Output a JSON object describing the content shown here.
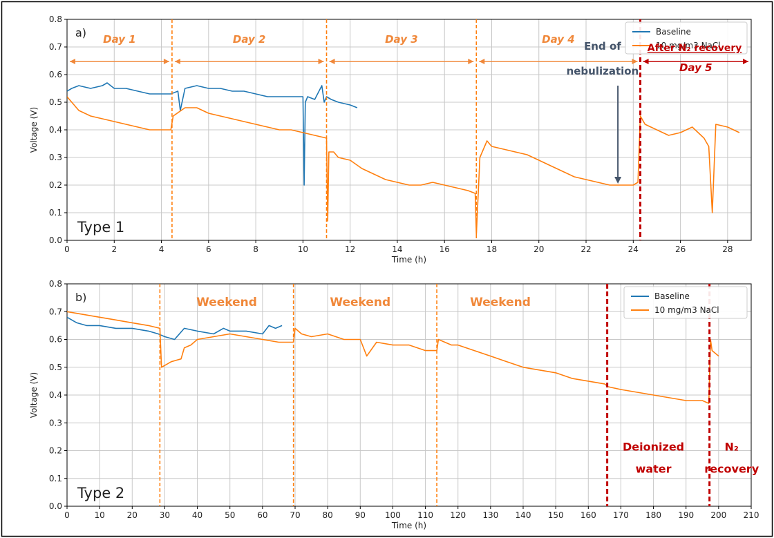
{
  "chart_data": [
    {
      "type": "line",
      "panel_label": "a)",
      "type_label": "Type 1",
      "xlabel": "Time (h)",
      "ylabel": "Voltage (V)",
      "xlim": [
        0,
        29
      ],
      "ylim": [
        0,
        0.8
      ],
      "xticks": [
        0,
        2,
        4,
        6,
        8,
        10,
        12,
        14,
        16,
        18,
        20,
        22,
        24,
        26,
        28
      ],
      "yticks": [
        0.0,
        0.1,
        0.2,
        0.3,
        0.4,
        0.5,
        0.6,
        0.7,
        0.8
      ],
      "grid": true,
      "legend_position": "top-right",
      "series": [
        {
          "name": "Baseline",
          "color": "#1f77b4",
          "x": [
            0,
            0.2,
            0.5,
            1,
            1.5,
            1.7,
            2,
            2.5,
            3,
            3.5,
            4,
            4.4,
            4.7,
            4.8,
            5,
            5.5,
            6,
            6.5,
            7,
            7.5,
            8,
            8.5,
            9,
            9.5,
            10,
            10.05,
            10.1,
            10.2,
            10.5,
            10.8,
            10.9,
            11,
            11.2,
            11.5,
            12,
            12.3
          ],
          "y": [
            0.54,
            0.55,
            0.56,
            0.55,
            0.56,
            0.57,
            0.55,
            0.55,
            0.54,
            0.53,
            0.53,
            0.53,
            0.54,
            0.47,
            0.55,
            0.56,
            0.55,
            0.55,
            0.54,
            0.54,
            0.53,
            0.52,
            0.52,
            0.52,
            0.52,
            0.2,
            0.5,
            0.52,
            0.51,
            0.56,
            0.5,
            0.52,
            0.51,
            0.5,
            0.49,
            0.48
          ]
        },
        {
          "name": "10 mg/m3 NaCl",
          "color": "#ff7f0e",
          "x": [
            0,
            0.5,
            1,
            1.5,
            2,
            2.5,
            3,
            3.5,
            4,
            4.4,
            4.5,
            5,
            5.5,
            6,
            6.5,
            7,
            7.5,
            8,
            8.5,
            9,
            9.5,
            10,
            10.5,
            11,
            11.05,
            11.1,
            11.3,
            11.5,
            12,
            12.5,
            13,
            13.5,
            14,
            14.5,
            15,
            15.5,
            16,
            16.5,
            17,
            17.3,
            17.35,
            17.5,
            17.8,
            18,
            18.5,
            19,
            19.5,
            20,
            20.5,
            21,
            21.5,
            22,
            22.5,
            23,
            23.5,
            24,
            24.2,
            24.3,
            24.5,
            25,
            25.5,
            26,
            26.5,
            27,
            27.2,
            27.35,
            27.5,
            28,
            28.5
          ],
          "y": [
            0.52,
            0.47,
            0.45,
            0.44,
            0.43,
            0.42,
            0.41,
            0.4,
            0.4,
            0.4,
            0.45,
            0.48,
            0.48,
            0.46,
            0.45,
            0.44,
            0.43,
            0.42,
            0.41,
            0.4,
            0.4,
            0.39,
            0.38,
            0.37,
            0.07,
            0.32,
            0.32,
            0.3,
            0.29,
            0.26,
            0.24,
            0.22,
            0.21,
            0.2,
            0.2,
            0.21,
            0.2,
            0.19,
            0.18,
            0.17,
            0.02,
            0.3,
            0.36,
            0.34,
            0.33,
            0.32,
            0.31,
            0.29,
            0.27,
            0.25,
            0.23,
            0.22,
            0.21,
            0.2,
            0.2,
            0.2,
            0.21,
            0.45,
            0.42,
            0.4,
            0.38,
            0.39,
            0.41,
            0.37,
            0.34,
            0.1,
            0.42,
            0.41,
            0.39
          ]
        }
      ],
      "vlines": [
        {
          "x": 4.45,
          "style": "dashed",
          "color": "#ff7f0e"
        },
        {
          "x": 11.0,
          "style": "dashed",
          "color": "#ff7f0e"
        },
        {
          "x": 17.35,
          "style": "dashed",
          "color": "#ff7f0e"
        },
        {
          "x": 24.3,
          "style": "dashed-thick",
          "color": "#c00000"
        }
      ],
      "annotations": [
        {
          "text": "Day 1",
          "color": "#f0883a",
          "from": 0,
          "to": 4.45
        },
        {
          "text": "Day 2",
          "color": "#f0883a",
          "from": 4.45,
          "to": 11.0
        },
        {
          "text": "Day 3",
          "color": "#f0883a",
          "from": 11.0,
          "to": 17.35
        },
        {
          "text": "Day 4",
          "color": "#f0883a",
          "from": 17.35,
          "to": 24.3
        },
        {
          "text": "Day 5",
          "color": "#c00000",
          "from": 24.3,
          "to": 29
        },
        {
          "text": "After N₂ recovery",
          "color": "#c00000",
          "x": 26.6,
          "y": 0.685
        },
        {
          "text": "End of",
          "color": "#44546a",
          "x": 22.7,
          "y": 0.69
        },
        {
          "text": "nebulization",
          "color": "#44546a",
          "x": 22.7,
          "y": 0.6
        }
      ]
    },
    {
      "type": "line",
      "panel_label": "b)",
      "type_label": "Type 2",
      "xlabel": "Time (h)",
      "ylabel": "Voltage (V)",
      "xlim": [
        0,
        210
      ],
      "ylim": [
        0,
        0.8
      ],
      "xticks": [
        0,
        10,
        20,
        30,
        40,
        50,
        60,
        70,
        80,
        90,
        100,
        110,
        120,
        130,
        140,
        150,
        160,
        170,
        180,
        190,
        200,
        210
      ],
      "yticks": [
        0.0,
        0.1,
        0.2,
        0.3,
        0.4,
        0.5,
        0.6,
        0.7,
        0.8
      ],
      "grid": true,
      "legend_position": "top-right",
      "series": [
        {
          "name": "Baseline",
          "color": "#1f77b4",
          "x": [
            0,
            3,
            6,
            10,
            15,
            20,
            25,
            28,
            30,
            33,
            36,
            40,
            45,
            48,
            50,
            55,
            60,
            62,
            64,
            66
          ],
          "y": [
            0.68,
            0.66,
            0.65,
            0.65,
            0.64,
            0.64,
            0.63,
            0.62,
            0.61,
            0.6,
            0.64,
            0.63,
            0.62,
            0.64,
            0.63,
            0.63,
            0.62,
            0.65,
            0.64,
            0.65
          ]
        },
        {
          "name": "10 mg/m3 NaCl",
          "color": "#ff7f0e",
          "x": [
            0,
            5,
            10,
            15,
            20,
            25,
            28.5,
            29,
            32,
            35,
            36,
            38,
            40,
            45,
            50,
            55,
            60,
            65,
            69.5,
            70,
            72,
            75,
            80,
            85,
            90,
            92,
            95,
            100,
            105,
            110,
            113.5,
            114,
            118,
            120,
            125,
            130,
            135,
            140,
            145,
            150,
            155,
            160,
            165,
            166,
            170,
            175,
            180,
            185,
            190,
            195,
            197,
            197.5,
            198,
            200
          ],
          "y": [
            0.7,
            0.69,
            0.68,
            0.67,
            0.66,
            0.65,
            0.64,
            0.5,
            0.52,
            0.53,
            0.57,
            0.58,
            0.6,
            0.61,
            0.62,
            0.61,
            0.6,
            0.59,
            0.59,
            0.64,
            0.62,
            0.61,
            0.62,
            0.6,
            0.6,
            0.54,
            0.59,
            0.58,
            0.58,
            0.56,
            0.56,
            0.6,
            0.58,
            0.58,
            0.56,
            0.54,
            0.52,
            0.5,
            0.49,
            0.48,
            0.46,
            0.45,
            0.44,
            0.43,
            0.42,
            0.41,
            0.4,
            0.39,
            0.38,
            0.38,
            0.37,
            0.6,
            0.56,
            0.54
          ]
        }
      ],
      "vlines": [
        {
          "x": 28.5,
          "style": "dashed",
          "color": "#ff7f0e"
        },
        {
          "x": 69.5,
          "style": "dashed",
          "color": "#ff7f0e"
        },
        {
          "x": 113.5,
          "style": "dashed",
          "color": "#ff7f0e"
        },
        {
          "x": 165.8,
          "style": "dashed-thick",
          "color": "#c00000"
        },
        {
          "x": 197.2,
          "style": "dashed-thick",
          "color": "#c00000"
        }
      ],
      "annotations": [
        {
          "text": "Weekend",
          "color": "#f0883a",
          "x": 49,
          "y": 0.72
        },
        {
          "text": "Weekend",
          "color": "#f0883a",
          "x": 90,
          "y": 0.72
        },
        {
          "text": "Weekend",
          "color": "#f0883a",
          "x": 133,
          "y": 0.72
        },
        {
          "text": "Deionized",
          "color": "#c00000",
          "x": 180,
          "y": 0.2
        },
        {
          "text": "water",
          "color": "#c00000",
          "x": 180,
          "y": 0.12
        },
        {
          "text": "N₂",
          "color": "#c00000",
          "x": 204,
          "y": 0.2
        },
        {
          "text": "recovery",
          "color": "#c00000",
          "x": 204,
          "y": 0.12
        }
      ]
    }
  ]
}
